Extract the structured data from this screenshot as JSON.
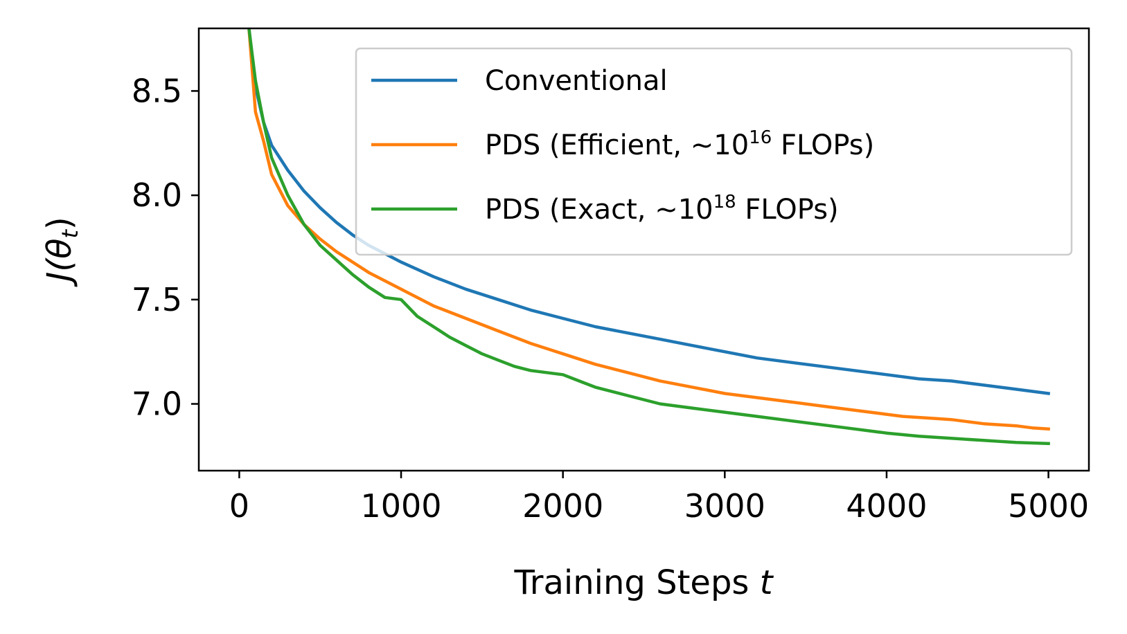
{
  "chart_data": {
    "type": "line",
    "title": "",
    "xlabel": "Training Steps",
    "xlabel_var": "t",
    "ylabel": "J(θ",
    "ylabel_sub": "t",
    "ylabel_close": ")",
    "xlim": [
      -250,
      5250
    ],
    "ylim": [
      6.68,
      8.8
    ],
    "xticks": [
      0,
      1000,
      2000,
      3000,
      4000,
      5000
    ],
    "xtick_labels": [
      "0",
      "1000",
      "2000",
      "3000",
      "4000",
      "5000"
    ],
    "yticks": [
      7.0,
      7.5,
      8.0,
      8.5
    ],
    "ytick_labels": [
      "7.0",
      "7.5",
      "8.0",
      "8.5"
    ],
    "grid": false,
    "legend_position": "top-right",
    "series": [
      {
        "name": "Conventional",
        "legend_parts": [
          "Conventional"
        ],
        "color": "#1f77b4",
        "x": [
          60,
          100,
          150,
          200,
          300,
          400,
          500,
          600,
          700,
          800,
          900,
          1000,
          1200,
          1400,
          1600,
          1800,
          2000,
          2200,
          2400,
          2600,
          2800,
          3000,
          3200,
          3400,
          3600,
          3800,
          4000,
          4200,
          4400,
          4600,
          4800,
          5000
        ],
        "values": [
          8.8,
          8.52,
          8.35,
          8.24,
          8.12,
          8.02,
          7.94,
          7.87,
          7.81,
          7.76,
          7.72,
          7.68,
          7.61,
          7.55,
          7.5,
          7.45,
          7.41,
          7.37,
          7.34,
          7.31,
          7.28,
          7.25,
          7.22,
          7.2,
          7.18,
          7.16,
          7.14,
          7.12,
          7.11,
          7.09,
          7.07,
          7.05
        ]
      },
      {
        "name": "PDS (Efficient, ~10^16 FLOPs)",
        "legend_parts": [
          "PDS (Efficient, ~10",
          "16",
          " FLOPs)"
        ],
        "color": "#ff7f0e",
        "x": [
          60,
          100,
          150,
          200,
          300,
          400,
          500,
          600,
          700,
          800,
          900,
          1000,
          1200,
          1400,
          1600,
          1800,
          2000,
          2200,
          2400,
          2600,
          2800,
          3000,
          3200,
          3400,
          3600,
          3800,
          4000,
          4100,
          4200,
          4300,
          4400,
          4500,
          4600,
          4700,
          4800,
          4900,
          5000
        ],
        "values": [
          8.8,
          8.4,
          8.26,
          8.1,
          7.95,
          7.86,
          7.79,
          7.73,
          7.68,
          7.63,
          7.59,
          7.55,
          7.47,
          7.41,
          7.35,
          7.29,
          7.24,
          7.19,
          7.15,
          7.11,
          7.08,
          7.05,
          7.03,
          7.01,
          6.99,
          6.97,
          6.95,
          6.94,
          6.935,
          6.93,
          6.925,
          6.915,
          6.905,
          6.9,
          6.895,
          6.885,
          6.88
        ]
      },
      {
        "name": "PDS (Exact, ~10^18 FLOPs)",
        "legend_parts": [
          "PDS (Exact, ~10",
          "18",
          " FLOPs)"
        ],
        "color": "#2ca02c",
        "x": [
          60,
          100,
          150,
          200,
          300,
          400,
          500,
          600,
          700,
          800,
          900,
          1000,
          1100,
          1200,
          1300,
          1400,
          1500,
          1600,
          1700,
          1800,
          1900,
          2000,
          2100,
          2200,
          2400,
          2600,
          2800,
          3000,
          3200,
          3400,
          3600,
          3800,
          4000,
          4200,
          4400,
          4600,
          4800,
          5000
        ],
        "values": [
          8.8,
          8.55,
          8.35,
          8.18,
          8.0,
          7.86,
          7.76,
          7.69,
          7.62,
          7.56,
          7.51,
          7.5,
          7.42,
          7.37,
          7.32,
          7.28,
          7.24,
          7.21,
          7.18,
          7.16,
          7.15,
          7.14,
          7.11,
          7.08,
          7.04,
          7.0,
          6.98,
          6.96,
          6.94,
          6.92,
          6.9,
          6.88,
          6.86,
          6.845,
          6.835,
          6.825,
          6.815,
          6.81
        ]
      }
    ]
  }
}
